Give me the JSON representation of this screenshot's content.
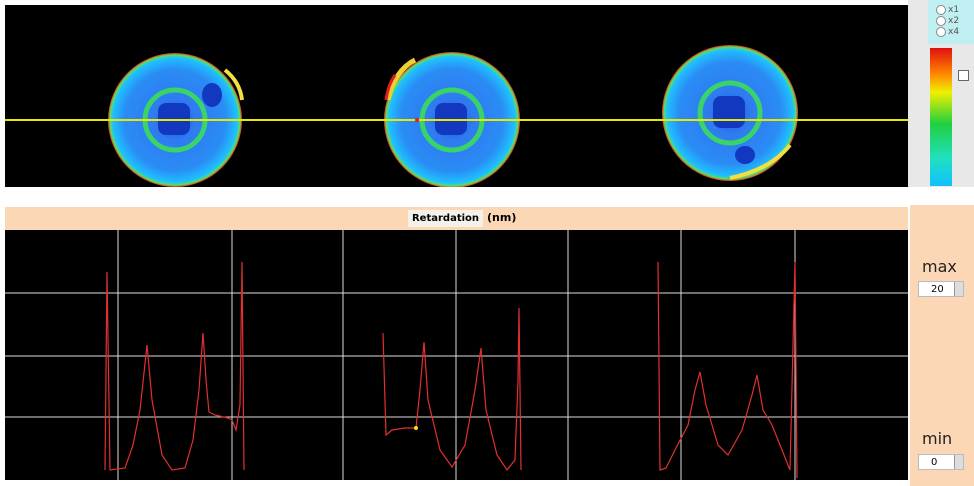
{
  "zoom_options": [
    "x1",
    "x2",
    "x4"
  ],
  "graph": {
    "title": "Retardation",
    "unit": "(nm)"
  },
  "range": {
    "max_label": "max",
    "max": 20,
    "min_label": "min",
    "min": 0
  }
}
